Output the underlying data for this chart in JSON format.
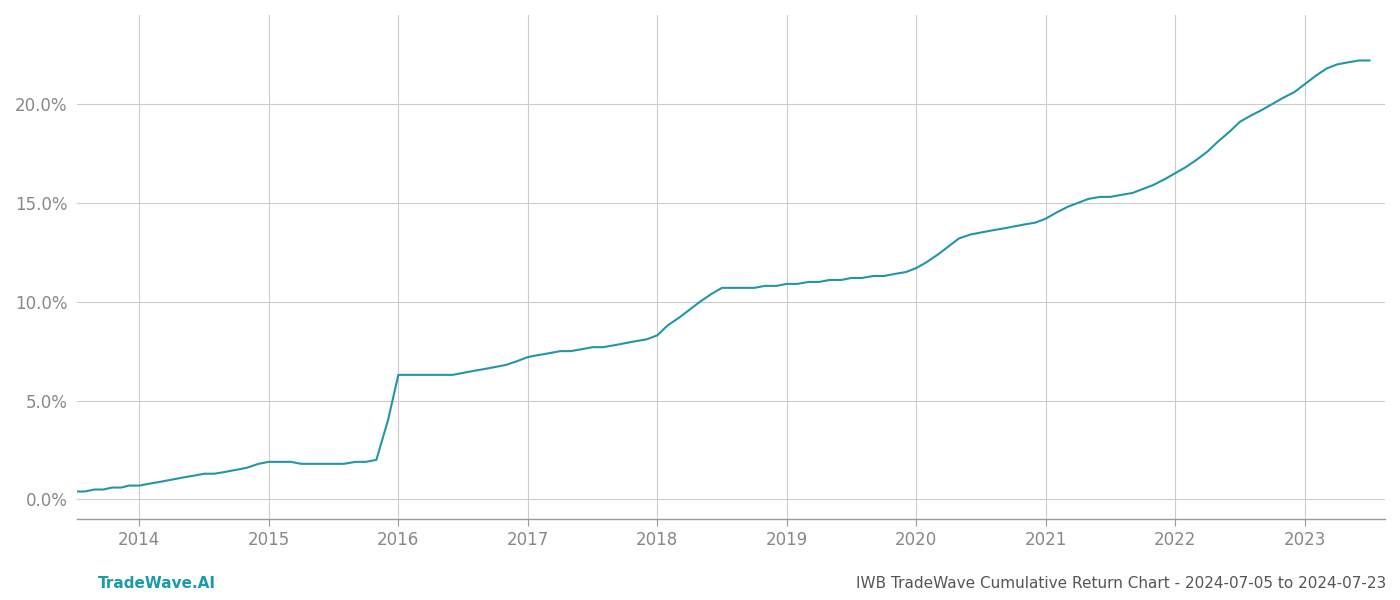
{
  "title": "",
  "footer_left": "TradeWave.AI",
  "footer_right": "IWB TradeWave Cumulative Return Chart - 2024-07-05 to 2024-07-23",
  "line_color": "#2196a8",
  "background_color": "#ffffff",
  "grid_color": "#cccccc",
  "x_years": [
    2014,
    2015,
    2016,
    2017,
    2018,
    2019,
    2020,
    2021,
    2022,
    2023
  ],
  "x_data": [
    2013.52,
    2013.58,
    2013.65,
    2013.72,
    2013.79,
    2013.86,
    2013.92,
    2014.0,
    2014.08,
    2014.17,
    2014.25,
    2014.33,
    2014.42,
    2014.5,
    2014.58,
    2014.67,
    2014.75,
    2014.83,
    2014.92,
    2015.0,
    2015.08,
    2015.17,
    2015.25,
    2015.33,
    2015.42,
    2015.5,
    2015.58,
    2015.67,
    2015.75,
    2015.83,
    2015.92,
    2016.0,
    2016.08,
    2016.17,
    2016.25,
    2016.33,
    2016.42,
    2016.5,
    2016.58,
    2016.67,
    2016.75,
    2016.83,
    2016.92,
    2017.0,
    2017.08,
    2017.17,
    2017.25,
    2017.33,
    2017.42,
    2017.5,
    2017.58,
    2017.67,
    2017.75,
    2017.83,
    2017.92,
    2018.0,
    2018.08,
    2018.17,
    2018.25,
    2018.33,
    2018.42,
    2018.5,
    2018.58,
    2018.67,
    2018.75,
    2018.83,
    2018.92,
    2019.0,
    2019.08,
    2019.17,
    2019.25,
    2019.33,
    2019.42,
    2019.5,
    2019.58,
    2019.67,
    2019.75,
    2019.83,
    2019.92,
    2020.0,
    2020.08,
    2020.17,
    2020.25,
    2020.33,
    2020.42,
    2020.5,
    2020.58,
    2020.67,
    2020.75,
    2020.83,
    2020.92,
    2021.0,
    2021.08,
    2021.17,
    2021.25,
    2021.33,
    2021.42,
    2021.5,
    2021.58,
    2021.67,
    2021.75,
    2021.83,
    2021.92,
    2022.0,
    2022.08,
    2022.17,
    2022.25,
    2022.33,
    2022.42,
    2022.5,
    2022.58,
    2022.67,
    2022.75,
    2022.83,
    2022.92,
    2023.0,
    2023.08,
    2023.17,
    2023.25,
    2023.33,
    2023.42,
    2023.5
  ],
  "y_data": [
    0.004,
    0.004,
    0.005,
    0.005,
    0.006,
    0.006,
    0.007,
    0.007,
    0.008,
    0.009,
    0.01,
    0.011,
    0.012,
    0.013,
    0.013,
    0.014,
    0.015,
    0.016,
    0.018,
    0.019,
    0.019,
    0.019,
    0.018,
    0.018,
    0.018,
    0.018,
    0.018,
    0.019,
    0.019,
    0.02,
    0.04,
    0.063,
    0.063,
    0.063,
    0.063,
    0.063,
    0.063,
    0.064,
    0.065,
    0.066,
    0.067,
    0.068,
    0.07,
    0.072,
    0.073,
    0.074,
    0.075,
    0.075,
    0.076,
    0.077,
    0.077,
    0.078,
    0.079,
    0.08,
    0.081,
    0.083,
    0.088,
    0.092,
    0.096,
    0.1,
    0.104,
    0.107,
    0.107,
    0.107,
    0.107,
    0.108,
    0.108,
    0.109,
    0.109,
    0.11,
    0.11,
    0.111,
    0.111,
    0.112,
    0.112,
    0.113,
    0.113,
    0.114,
    0.115,
    0.117,
    0.12,
    0.124,
    0.128,
    0.132,
    0.134,
    0.135,
    0.136,
    0.137,
    0.138,
    0.139,
    0.14,
    0.142,
    0.145,
    0.148,
    0.15,
    0.152,
    0.153,
    0.153,
    0.154,
    0.155,
    0.157,
    0.159,
    0.162,
    0.165,
    0.168,
    0.172,
    0.176,
    0.181,
    0.186,
    0.191,
    0.194,
    0.197,
    0.2,
    0.203,
    0.206,
    0.21,
    0.214,
    0.218,
    0.22,
    0.221,
    0.222,
    0.222
  ],
  "ylim": [
    -0.01,
    0.245
  ],
  "xlim": [
    2013.52,
    2023.62
  ],
  "yticks": [
    0.0,
    0.05,
    0.1,
    0.15,
    0.2
  ],
  "ytick_labels": [
    "0.0%",
    "5.0%",
    "10.0%",
    "15.0%",
    "20.0%"
  ],
  "line_width": 1.5,
  "footer_fontsize": 11,
  "tick_fontsize": 12,
  "tick_color": "#888888",
  "footer_left_color": "#1a9bab",
  "footer_right_color": "#555555"
}
